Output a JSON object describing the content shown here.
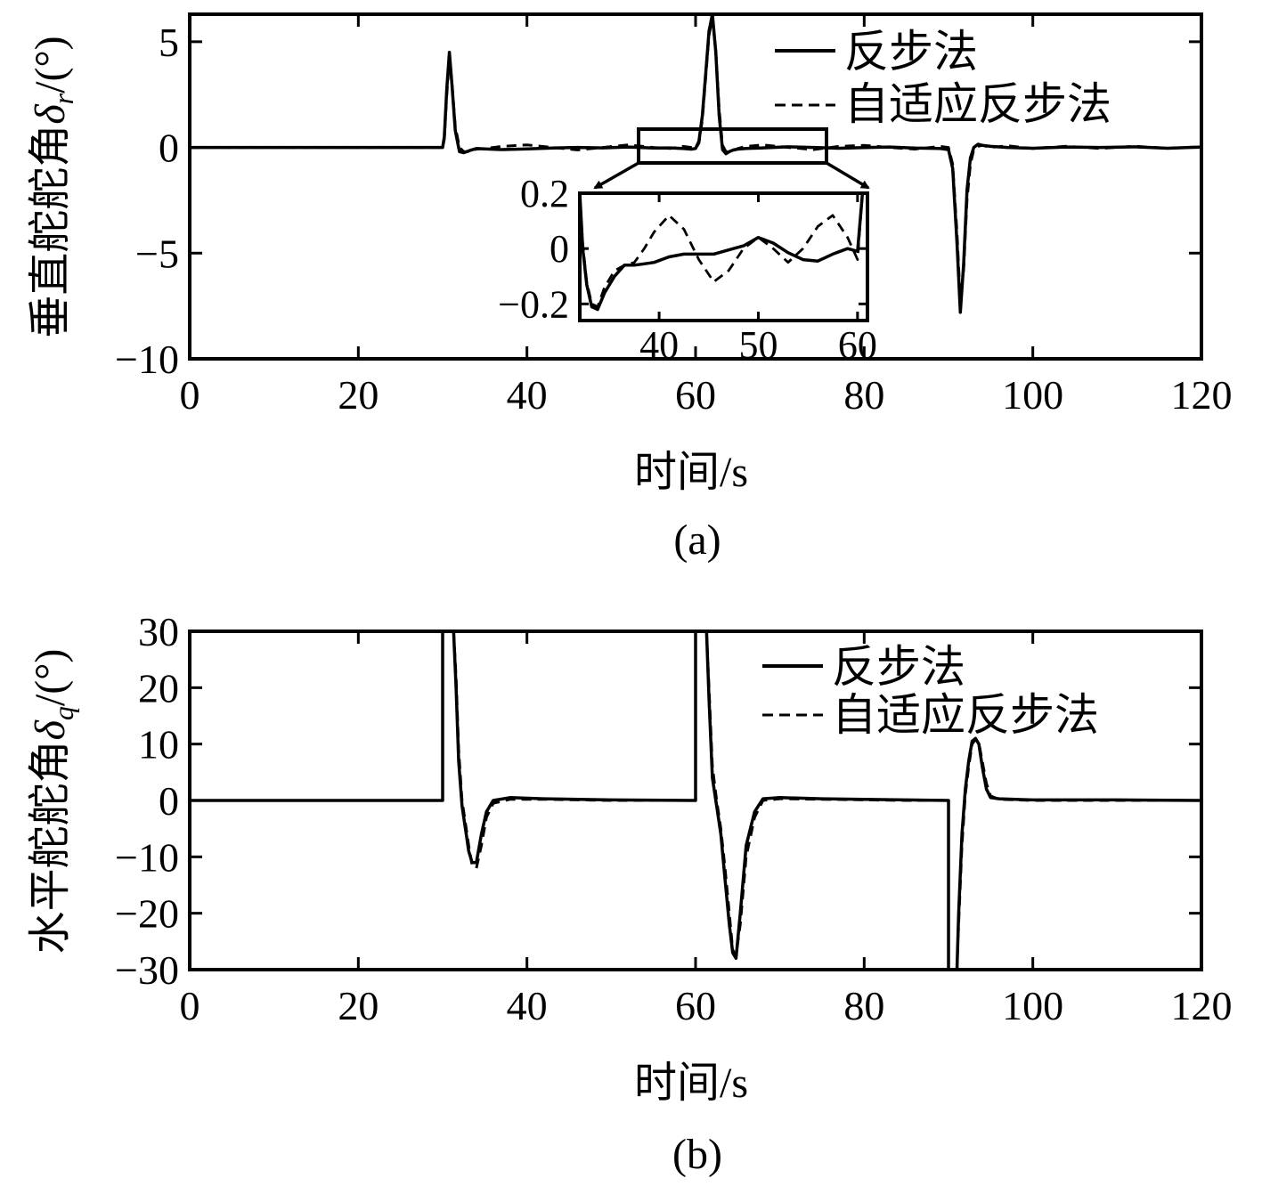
{
  "chart_data": [
    {
      "type": "line",
      "panel": "a",
      "caption": "(a)",
      "xlabel": "时间/s",
      "ylabel_prefix": "垂直舵舵角",
      "ylabel_symbol": "δ",
      "ylabel_subscript": "r",
      "ylabel_suffix": "/(°)",
      "xlim": [
        0,
        120
      ],
      "ylim": [
        -10,
        6.3
      ],
      "xticks": [
        0,
        20,
        40,
        60,
        80,
        100,
        120
      ],
      "xtick_labels": [
        "0",
        "20",
        "40",
        "60",
        "80",
        "100",
        "120"
      ],
      "yticks": [
        5,
        0,
        -5,
        -10
      ],
      "ytick_labels": [
        "5",
        "0",
        "−5",
        "−10"
      ],
      "grid": false,
      "legend_position": "top-right",
      "series": [
        {
          "name": "反步法",
          "style": "solid",
          "x": [
            0,
            30.0,
            30.2,
            30.5,
            30.8,
            31.1,
            31.5,
            32.0,
            32.5,
            33.2,
            34.0,
            35.0,
            37.0,
            40.0,
            43.0,
            46.0,
            49.0,
            52.0,
            55.0,
            57.0,
            58.5,
            59.5,
            60.0,
            60.4,
            60.8,
            61.2,
            61.6,
            62.0,
            62.4,
            62.8,
            63.2,
            63.6,
            64.0,
            64.5,
            65.0,
            66.0,
            68.0,
            71.0,
            74.0,
            77.0,
            80.0,
            83.0,
            86.0,
            89.0,
            90.0,
            90.5,
            91.0,
            91.4,
            91.8,
            92.2,
            92.6,
            93.0,
            93.5,
            94.0,
            95.0,
            97.0,
            100.0,
            104.0,
            108.0,
            112.0,
            116.0,
            120.0
          ],
          "y": [
            0,
            0,
            0.5,
            2.8,
            4.5,
            3.0,
            0.8,
            -0.2,
            -0.25,
            -0.15,
            -0.05,
            -0.07,
            -0.1,
            -0.07,
            -0.03,
            0.0,
            -0.02,
            0.02,
            -0.03,
            -0.02,
            -0.05,
            -0.08,
            -0.05,
            0.3,
            1.5,
            3.5,
            5.5,
            6.3,
            4.5,
            1.5,
            -0.1,
            -0.3,
            -0.2,
            -0.12,
            -0.08,
            -0.05,
            -0.02,
            0.03,
            0.0,
            -0.04,
            -0.01,
            0.02,
            -0.03,
            -0.05,
            -0.1,
            -1.0,
            -4.5,
            -7.8,
            -5.5,
            -2.0,
            -0.5,
            0.0,
            0.15,
            0.1,
            0.05,
            0.0,
            -0.04,
            0.02,
            0.0,
            0.03,
            -0.04,
            0.02
          ]
        },
        {
          "name": "自适应反步法",
          "style": "dashed",
          "x": [
            0,
            30.0,
            30.2,
            30.5,
            30.8,
            31.1,
            31.5,
            32.0,
            32.5,
            33.2,
            34.0,
            35.0,
            37.0,
            40.0,
            43.0,
            46.0,
            49.0,
            52.0,
            55.0,
            57.0,
            58.5,
            59.5,
            60.0,
            60.4,
            60.8,
            61.2,
            61.6,
            62.0,
            62.4,
            62.8,
            63.2,
            63.6,
            64.0,
            64.5,
            65.0,
            66.0,
            68.0,
            71.0,
            74.0,
            77.0,
            80.0,
            83.0,
            86.0,
            89.0,
            90.0,
            90.5,
            91.0,
            91.4,
            91.8,
            92.2,
            92.6,
            93.0,
            93.5,
            94.0,
            95.0,
            97.0,
            100.0,
            104.0,
            108.0,
            112.0,
            116.0,
            120.0
          ],
          "y": [
            0,
            0,
            0.4,
            2.5,
            4.2,
            3.1,
            1.0,
            0.0,
            -0.2,
            -0.2,
            -0.08,
            -0.05,
            0.05,
            0.12,
            0.0,
            -0.12,
            0.0,
            0.12,
            0.0,
            -0.05,
            0.05,
            0.0,
            -0.05,
            0.2,
            1.3,
            3.3,
            5.3,
            6.1,
            4.6,
            1.8,
            0.1,
            -0.2,
            -0.22,
            -0.15,
            -0.05,
            0.05,
            0.12,
            0.0,
            -0.1,
            0.05,
            0.1,
            0.0,
            -0.08,
            0.05,
            0.0,
            -0.8,
            -4.0,
            -7.3,
            -5.8,
            -2.5,
            -0.8,
            -0.1,
            0.05,
            0.1,
            0.0,
            0.08,
            -0.05,
            0.06,
            -0.05,
            0.06,
            -0.04,
            0.03
          ]
        }
      ],
      "inset": {
        "xlim": [
          32,
          61
        ],
        "ylim": [
          -0.26,
          0.2
        ],
        "xticks": [
          40,
          50,
          60
        ],
        "xtick_labels": [
          "40",
          "50",
          "60"
        ],
        "yticks": [
          0.2,
          0,
          -0.2
        ],
        "ytick_labels": [
          "0.2",
          "0",
          "−0.2"
        ],
        "series": [
          {
            "name": "反步法",
            "style": "solid",
            "x": [
              32.0,
              32.3,
              32.7,
              33.2,
              33.8,
              34.5,
              35.5,
              36.5,
              37.5,
              38.5,
              39.5,
              41.0,
              42.5,
              44.0,
              45.5,
              47.0,
              48.5,
              50.0,
              51.5,
              53.0,
              54.5,
              56.0,
              57.5,
              59.0,
              60.0,
              60.5,
              61.0
            ],
            "y": [
              0.2,
              0.0,
              -0.13,
              -0.21,
              -0.22,
              -0.16,
              -0.1,
              -0.06,
              -0.06,
              -0.055,
              -0.05,
              -0.03,
              -0.02,
              -0.02,
              -0.02,
              -0.005,
              0.01,
              0.04,
              0.02,
              -0.015,
              -0.04,
              -0.045,
              -0.02,
              0.0,
              -0.01,
              0.2,
              0.2
            ]
          },
          {
            "name": "自适应反步法",
            "style": "dashed",
            "x": [
              32.0,
              32.3,
              32.7,
              33.2,
              33.8,
              34.5,
              35.5,
              36.5,
              37.5,
              38.5,
              39.5,
              41.0,
              42.5,
              44.0,
              45.5,
              47.0,
              48.5,
              50.0,
              51.5,
              53.0,
              54.5,
              56.0,
              57.5,
              59.0,
              60.0,
              60.5,
              61.0
            ],
            "y": [
              0.2,
              0.02,
              -0.12,
              -0.2,
              -0.21,
              -0.14,
              -0.08,
              -0.06,
              -0.05,
              0.0,
              0.06,
              0.12,
              0.07,
              -0.04,
              -0.12,
              -0.08,
              0.0,
              0.04,
              0.0,
              -0.05,
              0.0,
              0.08,
              0.12,
              0.04,
              -0.04,
              0.2,
              0.2
            ]
          }
        ]
      }
    },
    {
      "type": "line",
      "panel": "b",
      "caption": "(b)",
      "xlabel": "时间/s",
      "ylabel_prefix": "水平舵舵角",
      "ylabel_symbol": "δ",
      "ylabel_subscript": "q",
      "ylabel_suffix": "/(°)",
      "xlim": [
        0,
        120
      ],
      "ylim": [
        -30,
        30
      ],
      "xticks": [
        0,
        20,
        40,
        60,
        80,
        100,
        120
      ],
      "xtick_labels": [
        "0",
        "20",
        "40",
        "60",
        "80",
        "100",
        "120"
      ],
      "yticks": [
        30,
        20,
        10,
        0,
        -10,
        -20,
        -30
      ],
      "ytick_labels": [
        "30",
        "20",
        "10",
        "0",
        "−10",
        "−20",
        "−30"
      ],
      "grid": false,
      "legend_position": "top-right",
      "series": [
        {
          "name": "反步法",
          "style": "solid",
          "x": [
            0,
            30.0,
            30.0,
            31.3,
            31.6,
            31.9,
            32.3,
            32.7,
            33.1,
            33.5,
            34.0,
            34.6,
            35.2,
            36.0,
            38.0,
            42.0,
            50.0,
            60.0,
            60.0,
            61.3,
            61.6,
            62.0,
            62.5,
            63.0,
            63.5,
            64.0,
            64.4,
            64.8,
            65.3,
            66.0,
            67.0,
            68.0,
            70.0,
            75.0,
            85.0,
            90.0,
            90.0,
            91.0,
            91.2,
            91.6,
            92.0,
            92.4,
            92.8,
            93.2,
            93.6,
            94.0,
            94.5,
            95.0,
            96.0,
            100.0,
            110.0,
            120.0
          ],
          "y": [
            0,
            0,
            30,
            30,
            20,
            7,
            -1,
            -5,
            -9,
            -11,
            -11,
            -6,
            -2,
            0,
            0.5,
            0.3,
            0.1,
            0,
            30,
            30,
            18,
            4,
            -1,
            -6,
            -14,
            -22,
            -27,
            -28,
            -20,
            -8,
            -2,
            0.3,
            0.5,
            0.3,
            0.1,
            0,
            -30,
            -30,
            -20,
            -6,
            2,
            7,
            10.5,
            11,
            10,
            6,
            2,
            0.5,
            0.3,
            0.1,
            0.1,
            0
          ]
        },
        {
          "name": "自适应反步法",
          "style": "dashed",
          "x": [
            0,
            30.0,
            30.0,
            31.3,
            31.6,
            31.9,
            32.3,
            32.7,
            33.1,
            33.5,
            34.0,
            34.6,
            35.2,
            36.0,
            38.0,
            42.0,
            50.0,
            60.0,
            60.0,
            61.3,
            61.6,
            62.0,
            62.5,
            63.0,
            63.5,
            64.0,
            64.4,
            64.8,
            65.3,
            66.0,
            67.0,
            68.0,
            70.0,
            75.0,
            85.0,
            90.0,
            90.0,
            91.0,
            91.2,
            91.6,
            92.0,
            92.4,
            92.8,
            93.2,
            93.6,
            94.0,
            94.5,
            95.0,
            96.0,
            100.0,
            110.0,
            120.0
          ],
          "y": [
            0,
            0,
            30,
            30,
            22,
            9,
            0,
            -4,
            -8,
            -11.5,
            -12,
            -8,
            -3,
            -0.5,
            0.2,
            0.2,
            0.0,
            0,
            30,
            30,
            20,
            6,
            0,
            -5,
            -12,
            -20,
            -26.5,
            -27.5,
            -22,
            -10,
            -3,
            0,
            0.3,
            0.2,
            0.0,
            0,
            -30,
            -30,
            -22,
            -8,
            1,
            6,
            10,
            10.8,
            10.2,
            7,
            3,
            0.8,
            0.2,
            0.0,
            0.0,
            0
          ]
        }
      ]
    }
  ]
}
